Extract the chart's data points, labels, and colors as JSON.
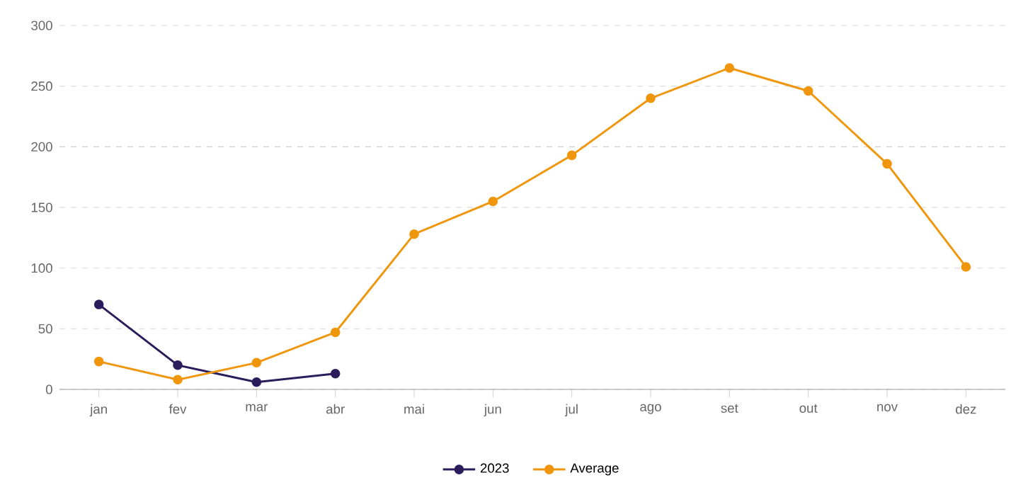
{
  "chart_data": {
    "type": "line",
    "categories": [
      "jan",
      "fev",
      "mar",
      "abr",
      "mai",
      "jun",
      "jul",
      "ago",
      "set",
      "out",
      "nov",
      "dez"
    ],
    "series": [
      {
        "name": "2023",
        "color": "#2b1d5c",
        "values": [
          70,
          20,
          6,
          13,
          null,
          null,
          null,
          null,
          null,
          null,
          null,
          null
        ]
      },
      {
        "name": "Average",
        "color": "#f0960c",
        "values": [
          23,
          8,
          22,
          47,
          128,
          155,
          193,
          240,
          265,
          246,
          186,
          101
        ]
      }
    ],
    "ylim": [
      0,
      300
    ],
    "yticks": [
      0,
      50,
      100,
      150,
      200,
      250,
      300
    ],
    "grid": "y",
    "legend": "bottom",
    "marker": "circle",
    "line_style": "solid"
  }
}
